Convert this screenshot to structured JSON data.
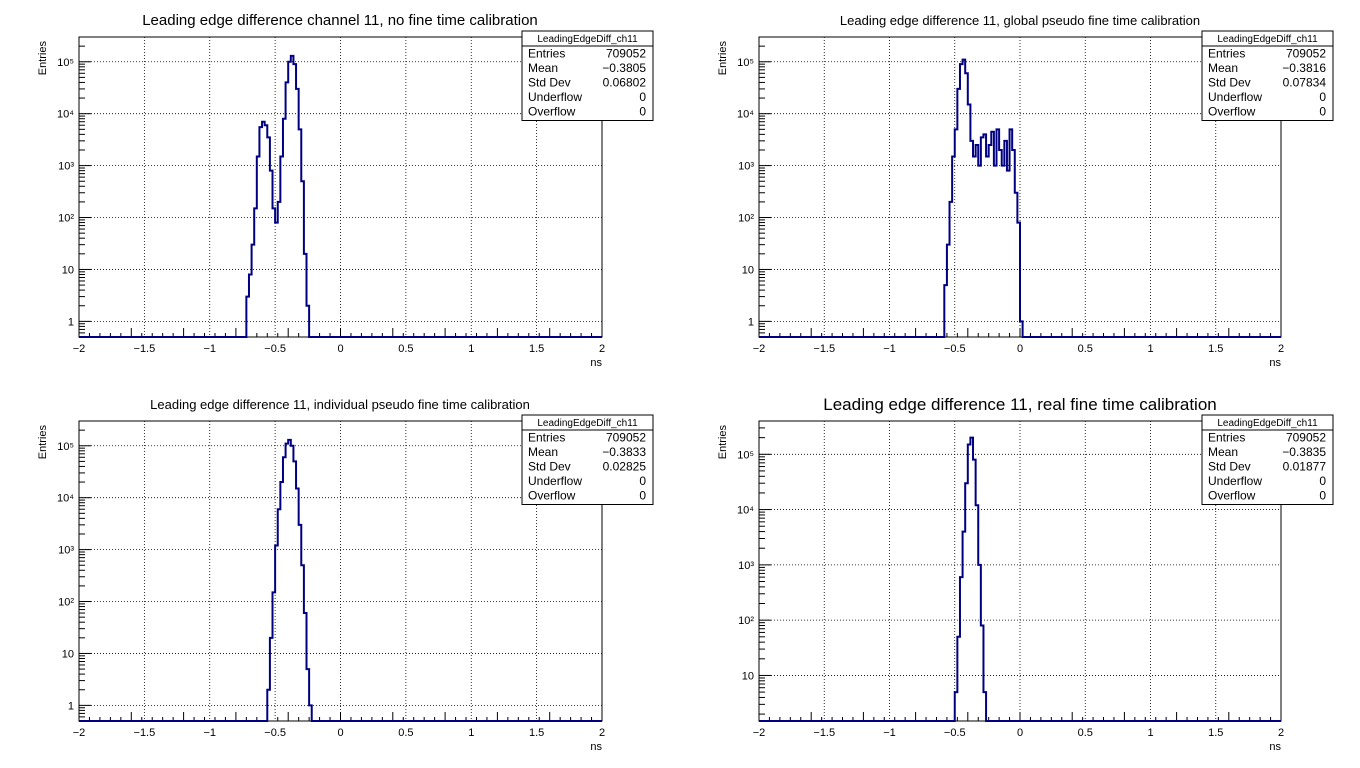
{
  "chart_data": [
    {
      "type": "histogram",
      "title": "Leading edge difference channel 11, no fine time calibration",
      "xlabel": "ns",
      "ylabel": "Entries",
      "xlim": [
        -2,
        2
      ],
      "ylim": [
        0.5,
        300000
      ],
      "log_y": true,
      "grid": true,
      "x_ticks": [
        "−2",
        "−1.5",
        "−1",
        "−0.5",
        "0",
        "0.5",
        "1",
        "1.5",
        "2"
      ],
      "y_ticks": [
        "1",
        "10",
        "10²",
        "10³",
        "10⁴",
        "10⁵"
      ],
      "stats": {
        "name": "LeadingEdgeDiff_ch11",
        "rows": [
          {
            "label": "Entries",
            "value": "709052"
          },
          {
            "label": "Mean",
            "value": "−0.3805"
          },
          {
            "label": "Std Dev",
            "value": "0.06802"
          },
          {
            "label": "Underflow",
            "value": "0"
          },
          {
            "label": "Overflow",
            "value": "0"
          }
        ]
      },
      "series": [
        {
          "x": [
            -0.74,
            -0.72,
            -0.7,
            -0.68,
            -0.66,
            -0.64,
            -0.62,
            -0.6,
            -0.58,
            -0.56,
            -0.54,
            -0.52,
            -0.5,
            -0.48,
            -0.46,
            -0.44,
            -0.42,
            -0.4,
            -0.38,
            -0.36,
            -0.34,
            -0.32,
            -0.3,
            -0.28,
            -0.26,
            -0.24
          ],
          "y": [
            0.5,
            3,
            8,
            30,
            150,
            1500,
            5500,
            7000,
            6000,
            3500,
            800,
            150,
            80,
            200,
            1500,
            8000,
            40000,
            100000,
            130000,
            90000,
            30000,
            5000,
            500,
            20,
            2,
            0.5
          ]
        }
      ]
    },
    {
      "type": "histogram",
      "title": "Leading edge difference 11, global pseudo fine time calibration",
      "xlabel": "ns",
      "ylabel": "Entries",
      "xlim": [
        -2,
        2
      ],
      "ylim": [
        0.5,
        300000
      ],
      "log_y": true,
      "grid": true,
      "x_ticks": [
        "−2",
        "−1.5",
        "−1",
        "−0.5",
        "0",
        "0.5",
        "1",
        "1.5",
        "2"
      ],
      "y_ticks": [
        "1",
        "10",
        "10²",
        "10³",
        "10⁴",
        "10⁵"
      ],
      "stats": {
        "name": "LeadingEdgeDiff_ch11",
        "rows": [
          {
            "label": "Entries",
            "value": "709052"
          },
          {
            "label": "Mean",
            "value": "−0.3816"
          },
          {
            "label": "Std Dev",
            "value": "0.07834"
          },
          {
            "label": "Underflow",
            "value": "0"
          },
          {
            "label": "Overflow",
            "value": "0"
          }
        ]
      },
      "series": [
        {
          "x": [
            -0.6,
            -0.58,
            -0.56,
            -0.54,
            -0.52,
            -0.5,
            -0.48,
            -0.46,
            -0.44,
            -0.42,
            -0.4,
            -0.38,
            -0.36,
            -0.34,
            -0.32,
            -0.3,
            -0.28,
            -0.26,
            -0.24,
            -0.22,
            -0.2,
            -0.18,
            -0.16,
            -0.14,
            -0.12,
            -0.1,
            -0.08,
            -0.06,
            -0.04,
            -0.02,
            0.0,
            0.02
          ],
          "y": [
            0.5,
            5,
            30,
            200,
            1500,
            5000,
            30000,
            90000,
            110000,
            60000,
            15000,
            3000,
            1500,
            2500,
            1000,
            3500,
            4000,
            1500,
            2500,
            4500,
            1000,
            5000,
            2000,
            1000,
            3000,
            800,
            5000,
            2000,
            300,
            80,
            1,
            0.5
          ]
        }
      ]
    },
    {
      "type": "histogram",
      "title": "Leading edge difference 11, individual pseudo fine time calibration",
      "xlabel": "ns",
      "ylabel": "Entries",
      "xlim": [
        -2,
        2
      ],
      "ylim": [
        0.5,
        300000
      ],
      "log_y": true,
      "grid": true,
      "x_ticks": [
        "−2",
        "−1.5",
        "−1",
        "−0.5",
        "0",
        "0.5",
        "1",
        "1.5",
        "2"
      ],
      "y_ticks": [
        "1",
        "10",
        "10²",
        "10³",
        "10⁴",
        "10⁵"
      ],
      "stats": {
        "name": "LeadingEdgeDiff_ch11",
        "rows": [
          {
            "label": "Entries",
            "value": "709052"
          },
          {
            "label": "Mean",
            "value": "−0.3833"
          },
          {
            "label": "Std Dev",
            "value": "0.02825"
          },
          {
            "label": "Underflow",
            "value": "0"
          },
          {
            "label": "Overflow",
            "value": "0"
          }
        ]
      },
      "series": [
        {
          "x": [
            -0.58,
            -0.56,
            -0.54,
            -0.52,
            -0.5,
            -0.48,
            -0.46,
            -0.44,
            -0.42,
            -0.4,
            -0.38,
            -0.36,
            -0.34,
            -0.32,
            -0.3,
            -0.28,
            -0.26,
            -0.24,
            -0.22,
            -0.2
          ],
          "y": [
            0.5,
            2,
            20,
            150,
            1200,
            6000,
            20000,
            60000,
            110000,
            130000,
            100000,
            50000,
            15000,
            3000,
            500,
            60,
            5,
            1,
            0.5,
            0.5
          ]
        }
      ]
    },
    {
      "type": "histogram",
      "title": "Leading edge difference 11, real fine time calibration",
      "xlabel": "ns",
      "ylabel": "Entries",
      "xlim": [
        -2,
        2
      ],
      "ylim": [
        1.5,
        400000
      ],
      "log_y": true,
      "grid": true,
      "x_ticks": [
        "−2",
        "−1.5",
        "−1",
        "−0.5",
        "0",
        "0.5",
        "1",
        "1.5",
        "2"
      ],
      "y_ticks": [
        "10",
        "10²",
        "10³",
        "10⁴",
        "10⁵"
      ],
      "stats": {
        "name": "LeadingEdgeDiff_ch11",
        "rows": [
          {
            "label": "Entries",
            "value": "709052"
          },
          {
            "label": "Mean",
            "value": "−0.3835"
          },
          {
            "label": "Std Dev",
            "value": "0.01877"
          },
          {
            "label": "Underflow",
            "value": "0"
          },
          {
            "label": "Overflow",
            "value": "0"
          }
        ]
      },
      "series": [
        {
          "x": [
            -0.52,
            -0.5,
            -0.48,
            -0.46,
            -0.44,
            -0.42,
            -0.4,
            -0.38,
            -0.36,
            -0.34,
            -0.32,
            -0.3,
            -0.28,
            -0.26,
            -0.24
          ],
          "y": [
            1.5,
            5,
            50,
            600,
            4000,
            30000,
            150000,
            200000,
            80000,
            12000,
            1000,
            80,
            5,
            1.5,
            1.5
          ]
        }
      ]
    }
  ]
}
